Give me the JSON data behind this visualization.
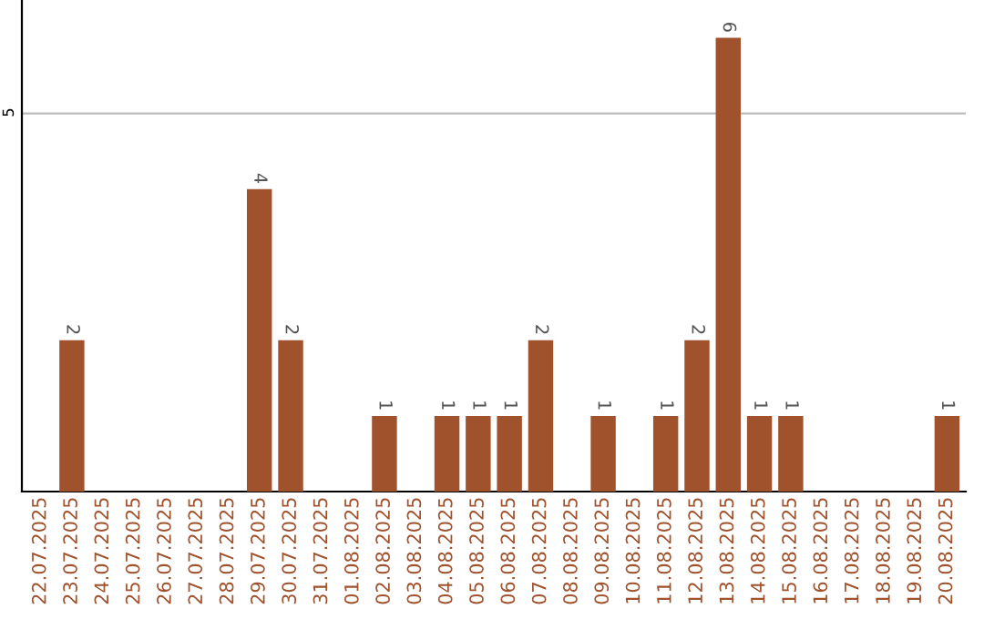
{
  "chart_data": {
    "type": "bar",
    "categories": [
      "22.07.2025",
      "23.07.2025",
      "24.07.2025",
      "25.07.2025",
      "26.07.2025",
      "27.07.2025",
      "28.07.2025",
      "29.07.2025",
      "30.07.2025",
      "31.07.2025",
      "01.08.2025",
      "02.08.2025",
      "03.08.2025",
      "04.08.2025",
      "05.08.2025",
      "06.08.2025",
      "07.08.2025",
      "08.08.2025",
      "09.08.2025",
      "10.08.2025",
      "11.08.2025",
      "12.08.2025",
      "13.08.2025",
      "14.08.2025",
      "15.08.2025",
      "16.08.2025",
      "17.08.2025",
      "18.08.2025",
      "19.08.2025",
      "20.08.2025"
    ],
    "values": [
      0,
      2,
      0,
      0,
      0,
      0,
      0,
      4,
      2,
      0,
      0,
      1,
      0,
      1,
      1,
      1,
      2,
      0,
      1,
      0,
      1,
      2,
      6,
      1,
      1,
      0,
      0,
      0,
      0,
      1
    ],
    "value_labels": [
      null,
      "2",
      null,
      null,
      null,
      null,
      null,
      "4",
      "2",
      null,
      null,
      "1",
      null,
      "1",
      "1",
      "1",
      "2",
      null,
      "1",
      null,
      "1",
      "2",
      "6",
      "1",
      "1",
      null,
      null,
      null,
      null,
      "1"
    ],
    "color": "#a0522d",
    "ylim": [
      0,
      6.5
    ],
    "yticks": [
      5
    ],
    "grid": "y"
  }
}
